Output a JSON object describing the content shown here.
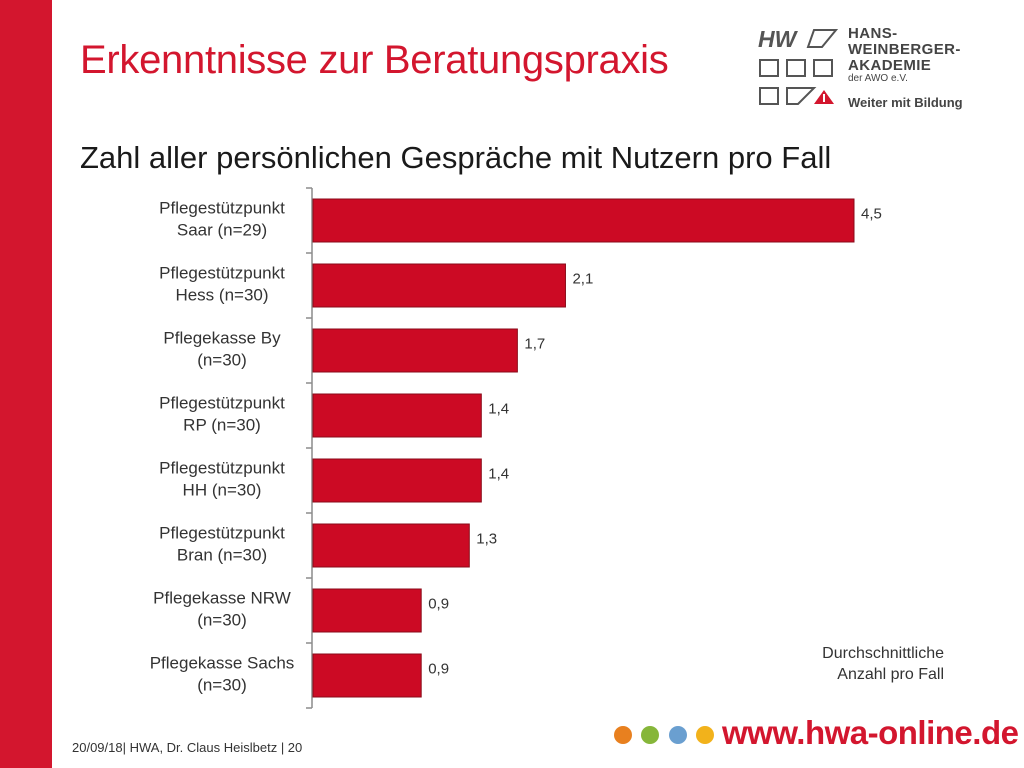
{
  "slide": {
    "title": "Erkenntnisse zur Beratungspraxis",
    "footer": "20/09/18| HWA, Dr. Claus Heislbetz | 20",
    "url": "www.hwa-online.de",
    "accent_color": "#d3162e",
    "dot_colors": [
      "#e8801f",
      "#86b63a",
      "#6a9fd0",
      "#f2b21b"
    ]
  },
  "logo": {
    "line1": "HANS-",
    "line2": "WEINBERGER-",
    "line3": "AKADEMIE",
    "line4": "der AWO e.V.",
    "tagline": "Weiter mit Bildung",
    "mark_letters": "HW",
    "mark_colors": [
      "#555555",
      "#d3162e"
    ]
  },
  "chart_data": {
    "type": "bar",
    "orientation": "horizontal",
    "title": "Zahl aller persönlichen Gespräche mit Nutzern pro Fall",
    "categories": [
      [
        "Pflegestützpunkt",
        "Saar (n=29)"
      ],
      [
        "Pflegestützpunkt",
        "Hess (n=30)"
      ],
      [
        "Pflegekasse By",
        "(n=30)"
      ],
      [
        "Pflegestützpunkt",
        "RP (n=30)"
      ],
      [
        "Pflegestützpunkt",
        "HH (n=30)"
      ],
      [
        "Pflegestützpunkt",
        "Bran (n=30)"
      ],
      [
        "Pflegekasse NRW",
        "(n=30)"
      ],
      [
        "Pflegekasse Sachs",
        "(n=30)"
      ]
    ],
    "values": [
      4.5,
      2.1,
      1.7,
      1.4,
      1.4,
      1.3,
      0.9,
      0.9
    ],
    "value_labels": [
      "4,5",
      "2,1",
      "1,7",
      "1,4",
      "1,4",
      "1,3",
      "0,9",
      "0,9"
    ],
    "xlim": [
      0,
      4.5
    ],
    "bar_color": "#cc0a24",
    "note": [
      "Durchschnittliche",
      "Anzahl pro Fall"
    ],
    "grid": false
  }
}
